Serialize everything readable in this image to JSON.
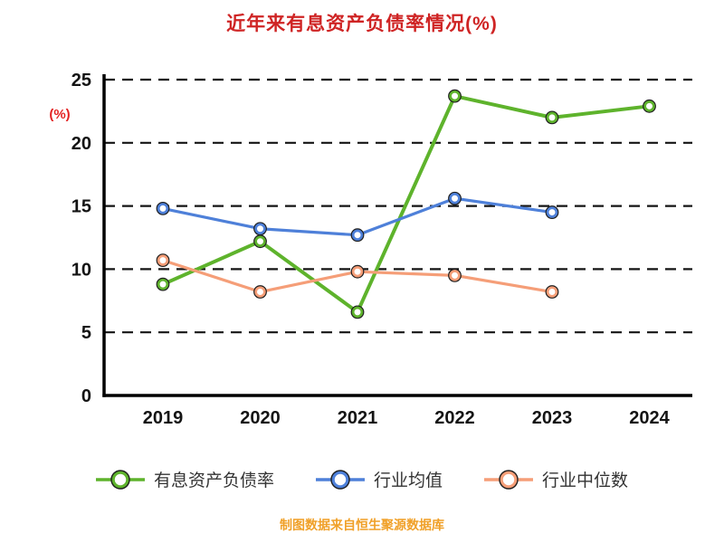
{
  "footer": "制图数据来自恒生聚源数据库",
  "colors": {
    "title": "#cf2424",
    "ylabel_text": "#e32222",
    "footer_text": "#f0a028",
    "axis": "#000000",
    "gridline": "#141414",
    "tick_label": "#141414",
    "legend_text": "#333333",
    "series_green": "#5eb32c",
    "series_blue": "#4e80d9",
    "series_orange": "#f59e78"
  },
  "chart_data": {
    "type": "line",
    "title": "近年来有息资产负债率情况(%)",
    "ylabel": "(%)",
    "xlabel": "",
    "categories": [
      "2019",
      "2020",
      "2021",
      "2022",
      "2023",
      "2024"
    ],
    "series": [
      {
        "name": "有息资产负债率",
        "color": "#5eb32c",
        "values": [
          8.8,
          12.2,
          6.6,
          23.7,
          22.0,
          22.9
        ]
      },
      {
        "name": "行业均值",
        "color": "#4e80d9",
        "values": [
          14.8,
          13.2,
          12.7,
          15.6,
          14.5,
          null
        ]
      },
      {
        "name": "行业中位数",
        "color": "#f59e78",
        "values": [
          10.7,
          8.2,
          9.8,
          9.5,
          8.2,
          null
        ]
      }
    ],
    "ylim": [
      0,
      25
    ],
    "yticks": [
      0,
      5,
      10,
      15,
      20,
      25
    ],
    "grid": "dashed-horizontal",
    "legend_position": "bottom",
    "marker": "open-circle"
  }
}
